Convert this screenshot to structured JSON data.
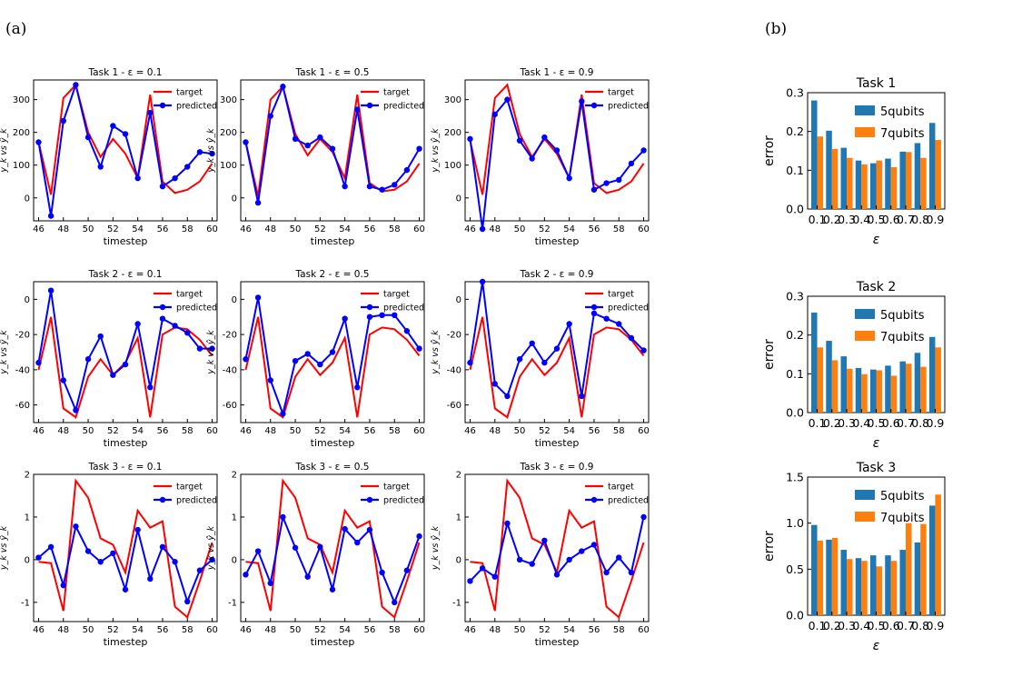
{
  "panel_labels": {
    "a": "(a)",
    "b": "(b)"
  },
  "chart_data": [
    {
      "id": "t1e01",
      "type": "line",
      "title": "Task 1 - ε = 0.1",
      "xlabel": "timestep",
      "ylabel": "y_k vs ŷ_k",
      "xlim": [
        45.6,
        60.4
      ],
      "ylim": [
        -70,
        360
      ],
      "xticks": [
        46,
        48,
        50,
        52,
        54,
        56,
        58,
        60
      ],
      "yticks": [
        0,
        100,
        200,
        300
      ],
      "legend": "upper-right",
      "x": [
        46,
        47,
        48,
        49,
        50,
        51,
        52,
        53,
        54,
        55,
        56,
        57,
        58,
        59,
        60
      ],
      "series": [
        {
          "name": "target",
          "color": "#ff0000",
          "marker": false,
          "values": [
            170,
            10,
            305,
            345,
            200,
            125,
            180,
            135,
            60,
            315,
            50,
            15,
            25,
            50,
            105
          ]
        },
        {
          "name": "predicted",
          "color": "#0000ff",
          "marker": true,
          "values": [
            170,
            -55,
            235,
            345,
            185,
            95,
            220,
            195,
            60,
            260,
            35,
            60,
            95,
            140,
            135
          ]
        }
      ]
    },
    {
      "id": "t1e05",
      "type": "line",
      "title": "Task 1 - ε = 0.5",
      "xlabel": "timestep",
      "ylabel": "y_k vs ŷ_k",
      "xlim": [
        45.6,
        60.4
      ],
      "ylim": [
        -70,
        360
      ],
      "xticks": [
        46,
        48,
        50,
        52,
        54,
        56,
        58,
        60
      ],
      "yticks": [
        0,
        100,
        200,
        300
      ],
      "legend": "upper-right",
      "x": [
        46,
        47,
        48,
        49,
        50,
        51,
        52,
        53,
        54,
        55,
        56,
        57,
        58,
        59,
        60
      ],
      "series": [
        {
          "name": "target",
          "color": "#ff0000",
          "marker": false,
          "values": [
            170,
            5,
            300,
            340,
            195,
            130,
            180,
            140,
            60,
            315,
            45,
            20,
            25,
            50,
            105
          ]
        },
        {
          "name": "predicted",
          "color": "#0000ff",
          "marker": true,
          "values": [
            170,
            -15,
            250,
            340,
            180,
            160,
            185,
            150,
            35,
            270,
            35,
            25,
            40,
            85,
            150
          ]
        }
      ]
    },
    {
      "id": "t1e09",
      "type": "line",
      "title": "Task 1 - ε = 0.9",
      "xlabel": "timestep",
      "ylabel": "y_k vs ŷ_k",
      "xlim": [
        45.6,
        60.4
      ],
      "ylim": [
        -70,
        360
      ],
      "xticks": [
        46,
        48,
        50,
        52,
        54,
        56,
        58,
        60
      ],
      "yticks": [
        0,
        100,
        200,
        300
      ],
      "legend": "upper-right",
      "x": [
        46,
        47,
        48,
        49,
        50,
        51,
        52,
        53,
        54,
        55,
        56,
        57,
        58,
        59,
        60
      ],
      "series": [
        {
          "name": "target",
          "color": "#ff0000",
          "marker": false,
          "values": [
            175,
            10,
            305,
            345,
            195,
            125,
            180,
            135,
            60,
            315,
            45,
            15,
            25,
            50,
            105
          ]
        },
        {
          "name": "predicted",
          "color": "#0000ff",
          "marker": true,
          "values": [
            180,
            -95,
            255,
            300,
            175,
            120,
            185,
            145,
            60,
            295,
            25,
            45,
            55,
            105,
            145
          ]
        }
      ]
    },
    {
      "id": "t2e01",
      "type": "line",
      "title": "Task 2 - ε = 0.1",
      "xlabel": "timestep",
      "ylabel": "y_k vs ŷ_k",
      "xlim": [
        45.6,
        60.4
      ],
      "ylim": [
        -70,
        10
      ],
      "xticks": [
        46,
        48,
        50,
        52,
        54,
        56,
        58,
        60
      ],
      "yticks": [
        -60,
        -40,
        -20,
        0
      ],
      "legend": "upper-right",
      "x": [
        46,
        47,
        48,
        49,
        50,
        51,
        52,
        53,
        54,
        55,
        56,
        57,
        58,
        59,
        60
      ],
      "series": [
        {
          "name": "target",
          "color": "#ff0000",
          "marker": false,
          "values": [
            -40,
            -10,
            -62,
            -67,
            -44,
            -34,
            -43,
            -36,
            -22,
            -67,
            -20,
            -16,
            -17,
            -23,
            -32
          ]
        },
        {
          "name": "predicted",
          "color": "#0000ff",
          "marker": true,
          "values": [
            -36,
            5,
            -46,
            -63,
            -34,
            -21,
            -43,
            -37,
            -14,
            -50,
            -11,
            -15,
            -19,
            -28,
            -28
          ]
        }
      ]
    },
    {
      "id": "t2e05",
      "type": "line",
      "title": "Task 2 - ε = 0.5",
      "xlabel": "timestep",
      "ylabel": "y_k vs ŷ_k",
      "xlim": [
        45.6,
        60.4
      ],
      "ylim": [
        -70,
        10
      ],
      "xticks": [
        46,
        48,
        50,
        52,
        54,
        56,
        58,
        60
      ],
      "yticks": [
        -60,
        -40,
        -20,
        0
      ],
      "legend": "upper-right",
      "x": [
        46,
        47,
        48,
        49,
        50,
        51,
        52,
        53,
        54,
        55,
        56,
        57,
        58,
        59,
        60
      ],
      "series": [
        {
          "name": "target",
          "color": "#ff0000",
          "marker": false,
          "values": [
            -40,
            -10,
            -62,
            -67,
            -44,
            -34,
            -43,
            -36,
            -22,
            -67,
            -20,
            -16,
            -17,
            -23,
            -32
          ]
        },
        {
          "name": "predicted",
          "color": "#0000ff",
          "marker": true,
          "values": [
            -34,
            1,
            -46,
            -65,
            -35,
            -31,
            -37,
            -30,
            -11,
            -50,
            -10,
            -9,
            -9,
            -18,
            -28
          ]
        }
      ]
    },
    {
      "id": "t2e09",
      "type": "line",
      "title": "Task 2 - ε = 0.9",
      "xlabel": "timestep",
      "ylabel": "y_k vs ŷ_k",
      "xlim": [
        45.6,
        60.4
      ],
      "ylim": [
        -70,
        10
      ],
      "xticks": [
        46,
        48,
        50,
        52,
        54,
        56,
        58,
        60
      ],
      "yticks": [
        -60,
        -40,
        -20,
        0
      ],
      "legend": "upper-right",
      "x": [
        46,
        47,
        48,
        49,
        50,
        51,
        52,
        53,
        54,
        55,
        56,
        57,
        58,
        59,
        60
      ],
      "series": [
        {
          "name": "target",
          "color": "#ff0000",
          "marker": false,
          "values": [
            -40,
            -10,
            -62,
            -67,
            -44,
            -34,
            -43,
            -36,
            -22,
            -67,
            -20,
            -16,
            -17,
            -23,
            -32
          ]
        },
        {
          "name": "predicted",
          "color": "#0000ff",
          "marker": true,
          "values": [
            -36,
            10,
            -48,
            -55,
            -34,
            -25,
            -36,
            -28,
            -14,
            -55,
            -8,
            -11,
            -14,
            -22,
            -29
          ]
        }
      ]
    },
    {
      "id": "t3e01",
      "type": "line",
      "title": "Task 3 - ε = 0.1",
      "xlabel": "timestep",
      "ylabel": "y_k vs ŷ_k",
      "xlim": [
        45.6,
        60.4
      ],
      "ylim": [
        -1.45,
        2.0
      ],
      "xticks": [
        46,
        48,
        50,
        52,
        54,
        56,
        58,
        60
      ],
      "yticks": [
        -1,
        0,
        1,
        2
      ],
      "legend": "upper-right",
      "x": [
        46,
        47,
        48,
        49,
        50,
        51,
        52,
        53,
        54,
        55,
        56,
        57,
        58,
        59,
        60
      ],
      "series": [
        {
          "name": "target",
          "color": "#ff0000",
          "marker": false,
          "values": [
            -0.05,
            -0.08,
            -1.2,
            1.85,
            1.45,
            0.5,
            0.35,
            -0.3,
            1.15,
            0.75,
            0.9,
            -1.1,
            -1.35,
            -0.5,
            0.4
          ]
        },
        {
          "name": "predicted",
          "color": "#0000ff",
          "marker": true,
          "values": [
            0.05,
            0.3,
            -0.6,
            0.78,
            0.2,
            -0.05,
            0.15,
            -0.7,
            0.7,
            -0.45,
            0.3,
            -0.05,
            -0.98,
            -0.25,
            0.0
          ]
        }
      ]
    },
    {
      "id": "t3e05",
      "type": "line",
      "title": "Task 3 - ε = 0.5",
      "xlabel": "timestep",
      "ylabel": "y_k vs ŷ_k",
      "xlim": [
        45.6,
        60.4
      ],
      "ylim": [
        -1.45,
        2.0
      ],
      "xticks": [
        46,
        48,
        50,
        52,
        54,
        56,
        58,
        60
      ],
      "yticks": [
        -1,
        0,
        1,
        2
      ],
      "legend": "upper-right",
      "x": [
        46,
        47,
        48,
        49,
        50,
        51,
        52,
        53,
        54,
        55,
        56,
        57,
        58,
        59,
        60
      ],
      "series": [
        {
          "name": "target",
          "color": "#ff0000",
          "marker": false,
          "values": [
            -0.05,
            -0.08,
            -1.2,
            1.85,
            1.45,
            0.5,
            0.35,
            -0.3,
            1.15,
            0.75,
            0.9,
            -1.1,
            -1.35,
            -0.5,
            0.4
          ]
        },
        {
          "name": "predicted",
          "color": "#0000ff",
          "marker": true,
          "values": [
            -0.35,
            0.2,
            -0.55,
            1.0,
            0.28,
            -0.4,
            0.3,
            -0.7,
            0.72,
            0.4,
            0.7,
            -0.3,
            -1.0,
            -0.25,
            0.55
          ]
        }
      ]
    },
    {
      "id": "t3e09",
      "type": "line",
      "title": "Task 3 - ε = 0.9",
      "xlabel": "timestep",
      "ylabel": "y_k vs ŷ_k",
      "xlim": [
        45.6,
        60.4
      ],
      "ylim": [
        -1.45,
        2.0
      ],
      "xticks": [
        46,
        48,
        50,
        52,
        54,
        56,
        58,
        60
      ],
      "yticks": [
        -1,
        0,
        1,
        2
      ],
      "legend": "upper-right",
      "x": [
        46,
        47,
        48,
        49,
        50,
        51,
        52,
        53,
        54,
        55,
        56,
        57,
        58,
        59,
        60
      ],
      "series": [
        {
          "name": "target",
          "color": "#ff0000",
          "marker": false,
          "values": [
            -0.05,
            -0.08,
            -1.2,
            1.85,
            1.45,
            0.5,
            0.35,
            -0.3,
            1.15,
            0.75,
            0.9,
            -1.1,
            -1.35,
            -0.5,
            0.4
          ]
        },
        {
          "name": "predicted",
          "color": "#0000ff",
          "marker": true,
          "values": [
            -0.5,
            -0.2,
            -0.4,
            0.85,
            0.0,
            -0.1,
            0.45,
            -0.35,
            0.0,
            0.2,
            0.35,
            -0.3,
            0.05,
            -0.3,
            1.0
          ]
        }
      ]
    },
    {
      "id": "b1",
      "type": "bar",
      "title": "Task 1",
      "xlabel": "ε",
      "ylabel": "error",
      "ylim": [
        0,
        0.3
      ],
      "yticks": [
        0.0,
        0.1,
        0.2,
        0.3
      ],
      "ytick_labels": [
        "0.0",
        "0.1",
        "0.2",
        "0.3"
      ],
      "legend": "upper-center",
      "categories": [
        "0.1",
        "0.2",
        "0.3",
        "0.4",
        "0.5",
        "0.6",
        "0.7",
        "0.8",
        "0.9"
      ],
      "series": [
        {
          "name": "5qubits",
          "color": "#1f77b4",
          "values": [
            0.28,
            0.202,
            0.158,
            0.125,
            0.118,
            0.13,
            0.148,
            0.17,
            0.222
          ]
        },
        {
          "name": "7qubits",
          "color": "#ff7f0e",
          "values": [
            0.187,
            0.155,
            0.132,
            0.115,
            0.125,
            0.108,
            0.147,
            0.132,
            0.178
          ]
        }
      ]
    },
    {
      "id": "b2",
      "type": "bar",
      "title": "Task 2",
      "xlabel": "ε",
      "ylabel": "error",
      "ylim": [
        0,
        0.3
      ],
      "yticks": [
        0.0,
        0.1,
        0.2,
        0.3
      ],
      "ytick_labels": [
        "0.0",
        "0.1",
        "0.2",
        "0.3"
      ],
      "legend": "upper-center",
      "categories": [
        "0.1",
        "0.2",
        "0.3",
        "0.4",
        "0.5",
        "0.6",
        "0.7",
        "0.8",
        "0.9"
      ],
      "series": [
        {
          "name": "5qubits",
          "color": "#1f77b4",
          "values": [
            0.258,
            0.185,
            0.145,
            0.115,
            0.111,
            0.121,
            0.132,
            0.154,
            0.195
          ]
        },
        {
          "name": "7qubits",
          "color": "#ff7f0e",
          "values": [
            0.168,
            0.135,
            0.113,
            0.099,
            0.109,
            0.095,
            0.126,
            0.118,
            0.168
          ]
        }
      ]
    },
    {
      "id": "b3",
      "type": "bar",
      "title": "Task 3",
      "xlabel": "ε",
      "ylabel": "error",
      "ylim": [
        0,
        1.5
      ],
      "yticks": [
        0.0,
        0.5,
        1.0,
        1.5
      ],
      "ytick_labels": [
        "0.0",
        "0.5",
        "1.0",
        "1.5"
      ],
      "legend": "upper-center",
      "categories": [
        "0.1",
        "0.2",
        "0.3",
        "0.4",
        "0.5",
        "0.6",
        "0.7",
        "0.8",
        "0.9"
      ],
      "series": [
        {
          "name": "5qubits",
          "color": "#1f77b4",
          "values": [
            0.98,
            0.82,
            0.71,
            0.62,
            0.65,
            0.65,
            0.71,
            0.79,
            1.19
          ]
        },
        {
          "name": "7qubits",
          "color": "#ff7f0e",
          "values": [
            0.81,
            0.84,
            0.61,
            0.59,
            0.53,
            0.59,
            1.0,
            0.99,
            1.31
          ]
        }
      ]
    }
  ]
}
